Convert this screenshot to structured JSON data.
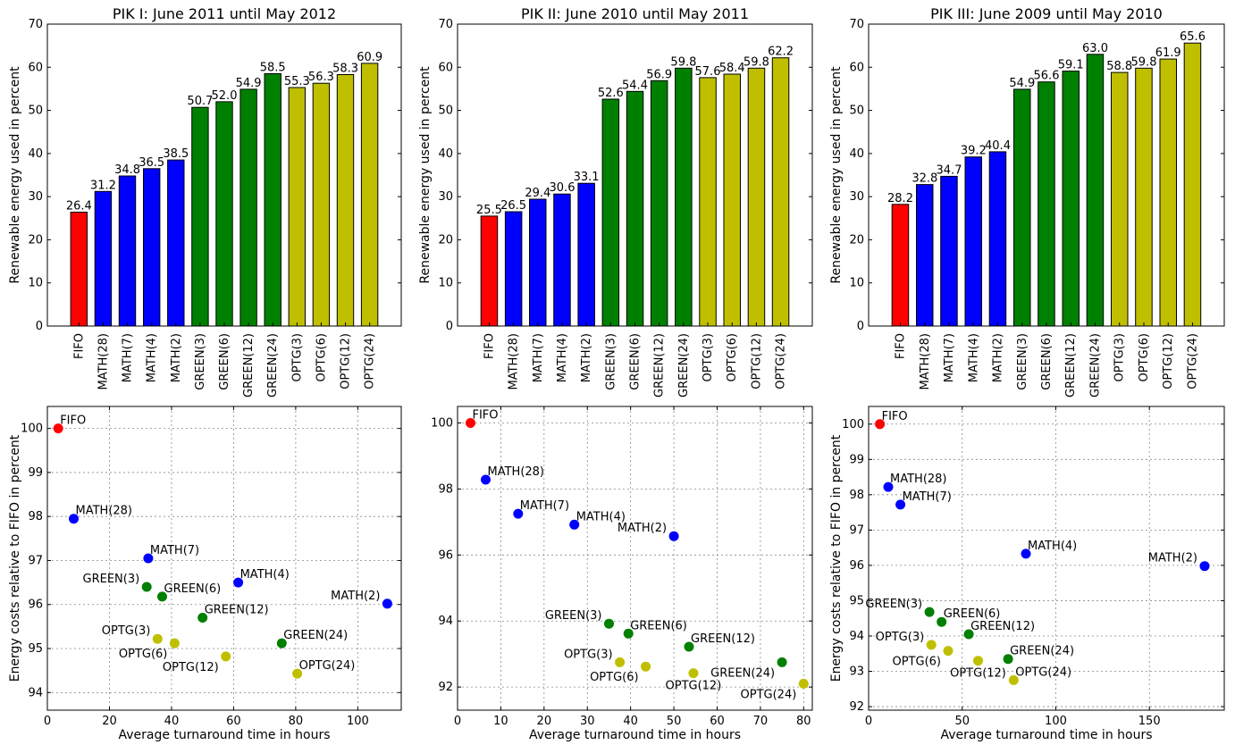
{
  "chart_data": [
    {
      "type": "bar",
      "title": "PIK I: June 2011 until May 2012",
      "ylabel": "Renewable energy used in percent",
      "xlabel": "",
      "ylim": [
        0,
        70
      ],
      "yticks": [
        0,
        10,
        20,
        30,
        40,
        50,
        60,
        70
      ],
      "grid": false,
      "categories": [
        "FIFO",
        "MATH(28)",
        "MATH(7)",
        "MATH(4)",
        "MATH(2)",
        "GREEN(3)",
        "GREEN(6)",
        "GREEN(12)",
        "GREEN(24)",
        "OPTG(3)",
        "OPTG(6)",
        "OPTG(12)",
        "OPTG(24)"
      ],
      "values": [
        26.4,
        31.2,
        34.8,
        36.5,
        38.5,
        50.7,
        52.0,
        54.9,
        58.5,
        55.3,
        56.3,
        58.3,
        60.9
      ],
      "value_labels": [
        "26.4",
        "31.2",
        "34.8",
        "36.5",
        "38.5",
        "50.7",
        "52.0",
        "54.9",
        "58.5",
        "55.3",
        "56.3",
        "58.3",
        "60.9"
      ],
      "colors": [
        "#ff0000",
        "#0000ff",
        "#0000ff",
        "#0000ff",
        "#0000ff",
        "#008000",
        "#008000",
        "#008000",
        "#008000",
        "#bfbf00",
        "#bfbf00",
        "#bfbf00",
        "#bfbf00"
      ]
    },
    {
      "type": "bar",
      "title": "PIK II: June 2010 until May 2011",
      "ylabel": "Renewable energy used in percent",
      "xlabel": "",
      "ylim": [
        0,
        70
      ],
      "yticks": [
        0,
        10,
        20,
        30,
        40,
        50,
        60,
        70
      ],
      "grid": false,
      "categories": [
        "FIFO",
        "MATH(28)",
        "MATH(7)",
        "MATH(4)",
        "MATH(2)",
        "GREEN(3)",
        "GREEN(6)",
        "GREEN(12)",
        "GREEN(24)",
        "OPTG(3)",
        "OPTG(6)",
        "OPTG(12)",
        "OPTG(24)"
      ],
      "values": [
        25.5,
        26.5,
        29.4,
        30.6,
        33.1,
        52.6,
        54.4,
        56.9,
        59.8,
        57.6,
        58.4,
        59.8,
        62.2
      ],
      "value_labels": [
        "25.5",
        "26.5",
        "29.4",
        "30.6",
        "33.1",
        "52.6",
        "54.4",
        "56.9",
        "59.8",
        "57.6",
        "58.4",
        "59.8",
        "62.2"
      ],
      "colors": [
        "#ff0000",
        "#0000ff",
        "#0000ff",
        "#0000ff",
        "#0000ff",
        "#008000",
        "#008000",
        "#008000",
        "#008000",
        "#bfbf00",
        "#bfbf00",
        "#bfbf00",
        "#bfbf00"
      ]
    },
    {
      "type": "bar",
      "title": "PIK III: June 2009 until May 2010",
      "ylabel": "Renewable energy used in percent",
      "xlabel": "",
      "ylim": [
        0,
        70
      ],
      "yticks": [
        0,
        10,
        20,
        30,
        40,
        50,
        60,
        70
      ],
      "grid": false,
      "categories": [
        "FIFO",
        "MATH(28)",
        "MATH(7)",
        "MATH(4)",
        "MATH(2)",
        "GREEN(3)",
        "GREEN(6)",
        "GREEN(12)",
        "GREEN(24)",
        "OPTG(3)",
        "OPTG(6)",
        "OPTG(12)",
        "OPTG(24)"
      ],
      "values": [
        28.2,
        32.8,
        34.7,
        39.2,
        40.4,
        54.9,
        56.6,
        59.1,
        63.0,
        58.8,
        59.8,
        61.9,
        65.6
      ],
      "value_labels": [
        "28.2",
        "32.8",
        "34.7",
        "39.2",
        "40.4",
        "54.9",
        "56.6",
        "59.1",
        "63.0",
        "58.8",
        "59.8",
        "61.9",
        "65.6"
      ],
      "colors": [
        "#ff0000",
        "#0000ff",
        "#0000ff",
        "#0000ff",
        "#0000ff",
        "#008000",
        "#008000",
        "#008000",
        "#008000",
        "#bfbf00",
        "#bfbf00",
        "#bfbf00",
        "#bfbf00"
      ]
    },
    {
      "type": "scatter",
      "title": "",
      "xlabel": "Average turnaround time in hours",
      "ylabel": "Energy costs relative to FIFO in percent",
      "xlim": [
        0,
        114
      ],
      "ylim": [
        93.6,
        100.5
      ],
      "xticks": [
        0,
        20,
        40,
        60,
        80,
        100
      ],
      "yticks": [
        94,
        95,
        96,
        97,
        98,
        99,
        100
      ],
      "grid": true,
      "points": [
        {
          "label": "FIFO",
          "x": 3.5,
          "y": 100.0,
          "color": "#ff0000",
          "label_pos": "right"
        },
        {
          "label": "MATH(28)",
          "x": 8.5,
          "y": 97.95,
          "color": "#0000ff",
          "label_pos": "right"
        },
        {
          "label": "MATH(7)",
          "x": 32.5,
          "y": 97.05,
          "color": "#0000ff",
          "label_pos": "right"
        },
        {
          "label": "MATH(4)",
          "x": 61.5,
          "y": 96.5,
          "color": "#0000ff",
          "label_pos": "right"
        },
        {
          "label": "MATH(2)",
          "x": 109.5,
          "y": 96.02,
          "color": "#0000ff",
          "label_pos": "left"
        },
        {
          "label": "GREEN(3)",
          "x": 32.0,
          "y": 96.4,
          "color": "#008000",
          "label_pos": "left"
        },
        {
          "label": "GREEN(6)",
          "x": 37.0,
          "y": 96.18,
          "color": "#008000",
          "label_pos": "right"
        },
        {
          "label": "GREEN(12)",
          "x": 50.0,
          "y": 95.7,
          "color": "#008000",
          "label_pos": "right"
        },
        {
          "label": "GREEN(24)",
          "x": 75.5,
          "y": 95.12,
          "color": "#008000",
          "label_pos": "right"
        },
        {
          "label": "OPTG(3)",
          "x": 35.5,
          "y": 95.22,
          "color": "#bfbf00",
          "label_pos": "left"
        },
        {
          "label": "OPTG(6)",
          "x": 41.0,
          "y": 95.12,
          "color": "#bfbf00",
          "label_pos": "left-below"
        },
        {
          "label": "OPTG(12)",
          "x": 57.5,
          "y": 94.82,
          "color": "#bfbf00",
          "label_pos": "left-below"
        },
        {
          "label": "OPTG(24)",
          "x": 80.5,
          "y": 94.43,
          "color": "#bfbf00",
          "label_pos": "right"
        }
      ]
    },
    {
      "type": "scatter",
      "title": "",
      "xlabel": "Average turnaround time in hours",
      "ylabel": "",
      "xlim": [
        0,
        82
      ],
      "ylim": [
        91.3,
        100.5
      ],
      "xticks": [
        0,
        10,
        20,
        30,
        40,
        50,
        60,
        70,
        80
      ],
      "yticks": [
        92,
        94,
        96,
        98,
        100
      ],
      "grid": true,
      "points": [
        {
          "label": "FIFO",
          "x": 3.0,
          "y": 100.0,
          "color": "#ff0000",
          "label_pos": "right"
        },
        {
          "label": "MATH(28)",
          "x": 6.5,
          "y": 98.28,
          "color": "#0000ff",
          "label_pos": "right"
        },
        {
          "label": "MATH(7)",
          "x": 14.0,
          "y": 97.25,
          "color": "#0000ff",
          "label_pos": "right"
        },
        {
          "label": "MATH(4)",
          "x": 27.0,
          "y": 96.92,
          "color": "#0000ff",
          "label_pos": "right"
        },
        {
          "label": "MATH(2)",
          "x": 50.0,
          "y": 96.57,
          "color": "#0000ff",
          "label_pos": "left"
        },
        {
          "label": "GREEN(3)",
          "x": 35.0,
          "y": 93.92,
          "color": "#008000",
          "label_pos": "left"
        },
        {
          "label": "GREEN(6)",
          "x": 39.5,
          "y": 93.62,
          "color": "#008000",
          "label_pos": "right"
        },
        {
          "label": "GREEN(12)",
          "x": 53.5,
          "y": 93.22,
          "color": "#008000",
          "label_pos": "right"
        },
        {
          "label": "GREEN(24)",
          "x": 75.0,
          "y": 92.75,
          "color": "#008000",
          "label_pos": "left-below"
        },
        {
          "label": "OPTG(3)",
          "x": 37.5,
          "y": 92.75,
          "color": "#bfbf00",
          "label_pos": "left"
        },
        {
          "label": "OPTG(6)",
          "x": 43.5,
          "y": 92.62,
          "color": "#bfbf00",
          "label_pos": "left-below"
        },
        {
          "label": "OPTG(12)",
          "x": 54.5,
          "y": 92.42,
          "color": "#bfbf00",
          "label_pos": "below"
        },
        {
          "label": "OPTG(24)",
          "x": 80.0,
          "y": 92.1,
          "color": "#bfbf00",
          "label_pos": "left-below"
        }
      ]
    },
    {
      "type": "scatter",
      "title": "",
      "xlabel": "Average turnaround time in hours",
      "ylabel": "Energy costs relative to FIFO in percent",
      "xlim": [
        0,
        190
      ],
      "ylim": [
        91.9,
        100.5
      ],
      "xticks": [
        0,
        50,
        100,
        150
      ],
      "yticks": [
        92,
        93,
        94,
        95,
        96,
        97,
        98,
        99,
        100
      ],
      "grid": true,
      "points": [
        {
          "label": "FIFO",
          "x": 6.0,
          "y": 100.0,
          "color": "#ff0000",
          "label_pos": "right"
        },
        {
          "label": "MATH(28)",
          "x": 10.5,
          "y": 98.22,
          "color": "#0000ff",
          "label_pos": "right"
        },
        {
          "label": "MATH(7)",
          "x": 17.0,
          "y": 97.72,
          "color": "#0000ff",
          "label_pos": "right"
        },
        {
          "label": "MATH(4)",
          "x": 84.0,
          "y": 96.33,
          "color": "#0000ff",
          "label_pos": "right"
        },
        {
          "label": "MATH(2)",
          "x": 179.5,
          "y": 95.98,
          "color": "#0000ff",
          "label_pos": "left"
        },
        {
          "label": "GREEN(3)",
          "x": 32.5,
          "y": 94.68,
          "color": "#008000",
          "label_pos": "left"
        },
        {
          "label": "GREEN(6)",
          "x": 39.0,
          "y": 94.4,
          "color": "#008000",
          "label_pos": "right"
        },
        {
          "label": "GREEN(12)",
          "x": 53.5,
          "y": 94.05,
          "color": "#008000",
          "label_pos": "right"
        },
        {
          "label": "GREEN(24)",
          "x": 74.5,
          "y": 93.35,
          "color": "#008000",
          "label_pos": "right"
        },
        {
          "label": "OPTG(3)",
          "x": 33.5,
          "y": 93.75,
          "color": "#bfbf00",
          "label_pos": "left"
        },
        {
          "label": "OPTG(6)",
          "x": 42.5,
          "y": 93.58,
          "color": "#bfbf00",
          "label_pos": "left-below"
        },
        {
          "label": "OPTG(12)",
          "x": 58.5,
          "y": 93.3,
          "color": "#bfbf00",
          "label_pos": "below"
        },
        {
          "label": "OPTG(24)",
          "x": 77.5,
          "y": 92.75,
          "color": "#bfbf00",
          "label_pos": "right"
        }
      ]
    }
  ]
}
